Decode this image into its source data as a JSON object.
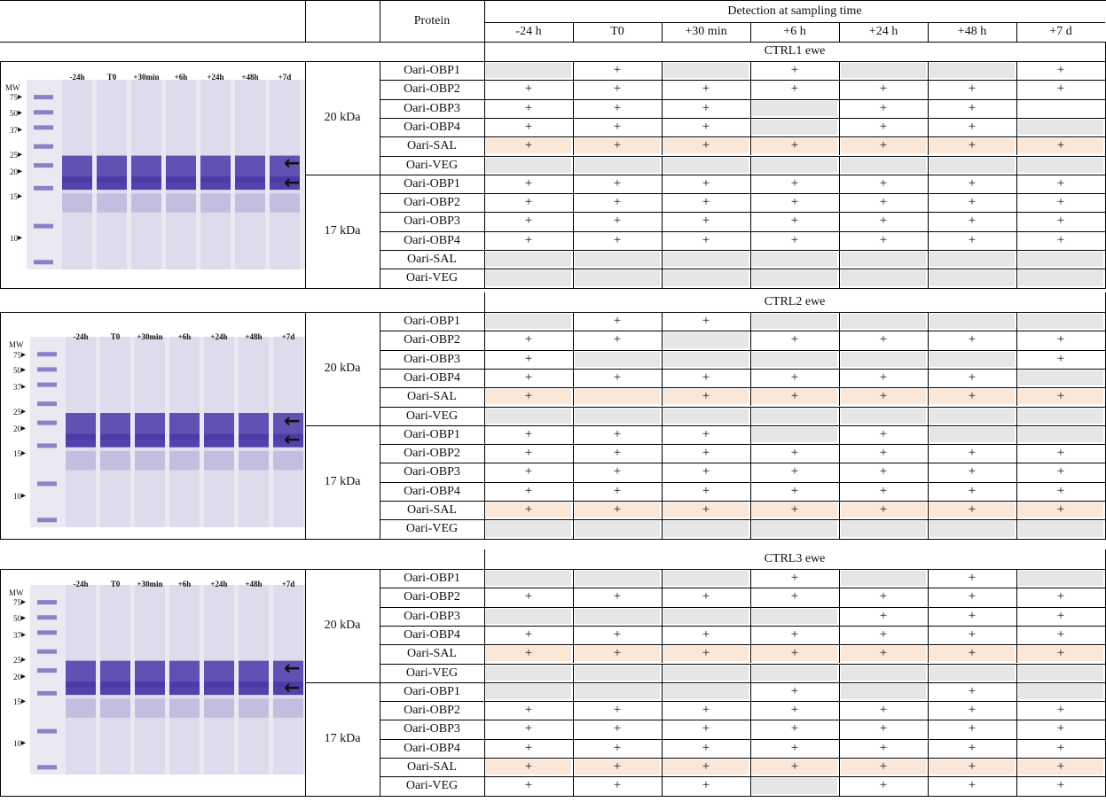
{
  "header": {
    "protein_label": "Protein",
    "detection_label": "Detection at sampling time",
    "times": [
      "-24 h",
      "T0",
      "+30 min",
      "+6 h",
      "+24 h",
      "+48 h",
      "+7 d"
    ]
  },
  "colors": {
    "grey": "#e6e6e6",
    "orange": "#fbe7d8",
    "gel_bg": "#ece8f2",
    "band": "#4a3aa8"
  },
  "symbols": {
    "plus": "+"
  },
  "ewes": [
    {
      "title": "CTRL1 ewe",
      "gel": {
        "mw_label": "MW",
        "mw_ticks": [
          "75",
          "50",
          "37",
          "25",
          "20",
          "15",
          "10"
        ],
        "lane_labels": [
          "-24h",
          "T0",
          "+30min",
          "+6h",
          "+24h",
          "+48h",
          "+7d"
        ]
      },
      "groups": [
        {
          "size": "20 kDa",
          "rows": [
            {
              "protein": "Oari-OBP1",
              "cells": [
                0,
                1,
                0,
                1,
                0,
                0,
                1
              ]
            },
            {
              "protein": "Oari-OBP2",
              "cells": [
                1,
                1,
                1,
                1,
                1,
                1,
                1
              ]
            },
            {
              "protein": "Oari-OBP3",
              "cells": [
                1,
                1,
                1,
                0,
                1,
                1,
                -1
              ]
            },
            {
              "protein": "Oari-OBP4",
              "cells": [
                1,
                1,
                1,
                0,
                1,
                1,
                0
              ]
            },
            {
              "protein": "Oari-SAL",
              "cells": [
                2,
                2,
                2,
                2,
                2,
                2,
                2
              ]
            },
            {
              "protein": "Oari-VEG",
              "cells": [
                0,
                0,
                0,
                0,
                0,
                0,
                0
              ]
            }
          ]
        },
        {
          "size": "17 kDa",
          "rows": [
            {
              "protein": "Oari-OBP1",
              "cells": [
                1,
                1,
                1,
                1,
                1,
                1,
                1
              ]
            },
            {
              "protein": "Oari-OBP2",
              "cells": [
                1,
                1,
                1,
                1,
                1,
                1,
                1
              ]
            },
            {
              "protein": "Oari-OBP3",
              "cells": [
                1,
                1,
                1,
                1,
                1,
                1,
                1
              ]
            },
            {
              "protein": "Oari-OBP4",
              "cells": [
                1,
                1,
                1,
                1,
                1,
                1,
                1
              ]
            },
            {
              "protein": "Oari-SAL",
              "cells": [
                0,
                0,
                0,
                0,
                0,
                0,
                0
              ]
            },
            {
              "protein": "Oari-VEG",
              "cells": [
                0,
                0,
                0,
                0,
                0,
                0,
                0
              ]
            }
          ]
        }
      ]
    },
    {
      "title": "CTRL2 ewe",
      "gel": {
        "mw_label": "MW",
        "mw_ticks": [
          "75",
          "50",
          "37",
          "25",
          "20",
          "15",
          "10"
        ],
        "lane_labels": [
          "-24h",
          "T0",
          "+30min",
          "+6h",
          "+24h",
          "+48h",
          "+7d"
        ]
      },
      "groups": [
        {
          "size": "20 kDa",
          "rows": [
            {
              "protein": "Oari-OBP1",
              "cells": [
                0,
                1,
                1,
                0,
                0,
                0,
                0
              ]
            },
            {
              "protein": "Oari-OBP2",
              "cells": [
                1,
                1,
                0,
                1,
                1,
                1,
                1
              ]
            },
            {
              "protein": "Oari-OBP3",
              "cells": [
                1,
                0,
                0,
                0,
                0,
                0,
                1
              ]
            },
            {
              "protein": "Oari-OBP4",
              "cells": [
                1,
                1,
                1,
                1,
                1,
                1,
                0
              ]
            },
            {
              "protein": "Oari-SAL",
              "cells": [
                2,
                3,
                2,
                2,
                2,
                2,
                2
              ]
            },
            {
              "protein": "Oari-VEG",
              "cells": [
                0,
                0,
                0,
                0,
                0,
                0,
                0
              ]
            }
          ]
        },
        {
          "size": "17 kDa",
          "rows": [
            {
              "protein": "Oari-OBP1",
              "cells": [
                1,
                1,
                1,
                0,
                1,
                0,
                0
              ]
            },
            {
              "protein": "Oari-OBP2",
              "cells": [
                1,
                1,
                1,
                1,
                1,
                1,
                1
              ]
            },
            {
              "protein": "Oari-OBP3",
              "cells": [
                1,
                1,
                1,
                1,
                1,
                1,
                1
              ]
            },
            {
              "protein": "Oari-OBP4",
              "cells": [
                1,
                1,
                1,
                1,
                1,
                1,
                1
              ]
            },
            {
              "protein": "Oari-SAL",
              "cells": [
                2,
                2,
                2,
                2,
                2,
                2,
                2
              ]
            },
            {
              "protein": "Oari-VEG",
              "cells": [
                0,
                0,
                0,
                0,
                0,
                0,
                0
              ]
            }
          ]
        }
      ]
    },
    {
      "title": "CTRL3 ewe",
      "gel": {
        "mw_label": "MW",
        "mw_ticks": [
          "75",
          "50",
          "37",
          "25",
          "20",
          "15",
          "10"
        ],
        "lane_labels": [
          "-24h",
          "T0",
          "+30min",
          "+6h",
          "+24h",
          "+48h",
          "+7d"
        ]
      },
      "groups": [
        {
          "size": "20 kDa",
          "rows": [
            {
              "protein": "Oari-OBP1",
              "cells": [
                0,
                0,
                0,
                1,
                0,
                1,
                0
              ]
            },
            {
              "protein": "Oari-OBP2",
              "cells": [
                1,
                1,
                1,
                1,
                1,
                1,
                1
              ]
            },
            {
              "protein": "Oari-OBP3",
              "cells": [
                0,
                0,
                0,
                0,
                1,
                1,
                1
              ]
            },
            {
              "protein": "Oari-OBP4",
              "cells": [
                1,
                1,
                1,
                1,
                1,
                1,
                1
              ]
            },
            {
              "protein": "Oari-SAL",
              "cells": [
                2,
                2,
                2,
                2,
                2,
                2,
                2
              ]
            },
            {
              "protein": "Oari-VEG",
              "cells": [
                0,
                0,
                0,
                0,
                0,
                0,
                0
              ]
            }
          ]
        },
        {
          "size": "17 kDa",
          "rows": [
            {
              "protein": "Oari-OBP1",
              "cells": [
                0,
                0,
                0,
                1,
                0,
                1,
                0
              ]
            },
            {
              "protein": "Oari-OBP2",
              "cells": [
                1,
                1,
                1,
                1,
                1,
                1,
                1
              ]
            },
            {
              "protein": "Oari-OBP3",
              "cells": [
                1,
                1,
                1,
                1,
                1,
                1,
                1
              ]
            },
            {
              "protein": "Oari-OBP4",
              "cells": [
                1,
                1,
                1,
                1,
                1,
                1,
                1
              ]
            },
            {
              "protein": "Oari-SAL",
              "cells": [
                2,
                2,
                2,
                2,
                2,
                2,
                2
              ]
            },
            {
              "protein": "Oari-VEG",
              "cells": [
                1,
                1,
                1,
                0,
                1,
                1,
                1
              ]
            }
          ]
        }
      ]
    }
  ]
}
